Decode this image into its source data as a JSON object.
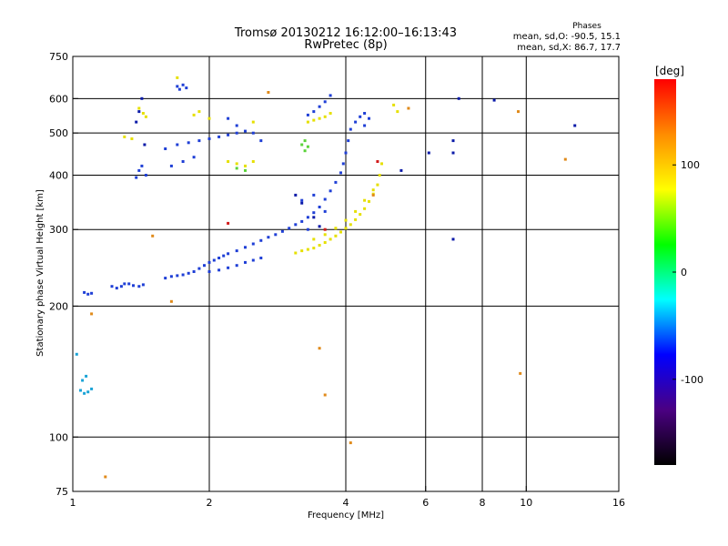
{
  "chart_data": {
    "type": "scatter",
    "title": "Tromsø 20130212 16:12:00–16:13:43",
    "subtitle": "RwPretec (8p)",
    "xlabel": "Frequency [MHz]",
    "ylabel": "Stationary phase Virtual Height [km]",
    "x_scale": "log",
    "y_scale": "log",
    "xlim": [
      1,
      16
    ],
    "ylim": [
      75,
      750
    ],
    "x_ticks": [
      1,
      2,
      4,
      6,
      8,
      10,
      16
    ],
    "y_ticks": [
      75,
      100,
      200,
      300,
      400,
      500,
      600,
      750
    ],
    "x_grid": [
      1,
      2,
      4,
      6,
      8,
      10,
      16
    ],
    "y_grid": [
      100,
      200,
      300,
      400,
      500,
      600
    ],
    "grid": true,
    "stats": {
      "title": "Phases",
      "line1": "mean, sd,O: -90.5, 15.1",
      "line2": "mean, sd,X: 86.7, 17.7"
    },
    "colorbar": {
      "unit": "[deg]",
      "min": -180,
      "max": 180,
      "ticks": [
        100,
        0,
        -100
      ],
      "tick_labels": [
        "100",
        "0",
        "-100"
      ],
      "colors": [
        "#000000",
        "#4b0082",
        "#0000ff",
        "#00ffff",
        "#00ff00",
        "#ffff00",
        "#ff8c00",
        "#ff0000"
      ]
    },
    "series": [
      {
        "color": "#1f3fd6",
        "points": [
          [
            1.06,
            215
          ],
          [
            1.08,
            213
          ],
          [
            1.1,
            214
          ],
          [
            1.22,
            222
          ],
          [
            1.25,
            220
          ],
          [
            1.28,
            222
          ],
          [
            1.3,
            225
          ],
          [
            1.33,
            225
          ],
          [
            1.36,
            223
          ],
          [
            1.4,
            222
          ],
          [
            1.43,
            224
          ],
          [
            1.6,
            232
          ],
          [
            1.65,
            234
          ],
          [
            1.7,
            235
          ],
          [
            1.75,
            236
          ],
          [
            1.8,
            238
          ],
          [
            1.85,
            240
          ],
          [
            1.9,
            244
          ],
          [
            1.95,
            248
          ],
          [
            2.0,
            252
          ],
          [
            2.05,
            255
          ],
          [
            2.1,
            258
          ],
          [
            2.15,
            261
          ],
          [
            2.2,
            264
          ],
          [
            2.3,
            268
          ],
          [
            2.4,
            273
          ],
          [
            2.5,
            278
          ],
          [
            2.6,
            283
          ],
          [
            2.7,
            288
          ],
          [
            2.8,
            292
          ],
          [
            2.9,
            297
          ],
          [
            3.0,
            302
          ],
          [
            3.1,
            308
          ],
          [
            3.2,
            313
          ],
          [
            3.3,
            320
          ],
          [
            3.4,
            328
          ],
          [
            3.5,
            338
          ],
          [
            2.0,
            240
          ],
          [
            2.1,
            242
          ],
          [
            2.2,
            245
          ],
          [
            2.3,
            248
          ],
          [
            2.4,
            252
          ],
          [
            2.5,
            255
          ],
          [
            2.6,
            258
          ],
          [
            3.6,
            352
          ],
          [
            3.7,
            368
          ],
          [
            3.8,
            385
          ],
          [
            3.9,
            405
          ],
          [
            3.95,
            425
          ],
          [
            4.0,
            450
          ],
          [
            4.05,
            480
          ],
          [
            4.1,
            510
          ],
          [
            4.2,
            530
          ],
          [
            4.3,
            545
          ],
          [
            4.4,
            555
          ],
          [
            1.4,
            410
          ],
          [
            1.42,
            420
          ],
          [
            1.45,
            400
          ],
          [
            1.38,
            395
          ],
          [
            1.6,
            460
          ],
          [
            1.7,
            470
          ],
          [
            1.8,
            475
          ],
          [
            1.9,
            480
          ],
          [
            2.0,
            485
          ],
          [
            2.1,
            490
          ],
          [
            2.2,
            495
          ],
          [
            2.3,
            500
          ],
          [
            2.4,
            505
          ],
          [
            1.7,
            640
          ],
          [
            1.72,
            630
          ],
          [
            1.75,
            645
          ],
          [
            1.78,
            635
          ],
          [
            3.3,
            550
          ],
          [
            3.4,
            560
          ],
          [
            3.5,
            575
          ],
          [
            3.6,
            590
          ],
          [
            3.7,
            610
          ],
          [
            1.65,
            420
          ],
          [
            1.75,
            430
          ],
          [
            1.85,
            440
          ],
          [
            2.2,
            540
          ],
          [
            2.3,
            520
          ],
          [
            2.5,
            500
          ],
          [
            2.6,
            480
          ],
          [
            3.2,
            350
          ],
          [
            3.4,
            360
          ],
          [
            3.6,
            330
          ],
          [
            3.3,
            300
          ],
          [
            4.4,
            520
          ],
          [
            4.5,
            540
          ]
        ]
      },
      {
        "color": "#0a1aa8",
        "points": [
          [
            1.42,
            600
          ],
          [
            1.4,
            560
          ],
          [
            1.38,
            530
          ],
          [
            1.44,
            470
          ],
          [
            3.1,
            360
          ],
          [
            3.2,
            345
          ],
          [
            3.4,
            320
          ],
          [
            3.5,
            305
          ],
          [
            6.9,
            480
          ],
          [
            6.9,
            450
          ],
          [
            12.8,
            520
          ],
          [
            6.1,
            450
          ],
          [
            5.3,
            410
          ],
          [
            6.9,
            285
          ],
          [
            7.1,
            600
          ],
          [
            8.5,
            595
          ]
        ]
      },
      {
        "color": "#e6e000",
        "points": [
          [
            3.1,
            265
          ],
          [
            3.2,
            268
          ],
          [
            3.3,
            270
          ],
          [
            3.4,
            272
          ],
          [
            3.5,
            276
          ],
          [
            3.6,
            280
          ],
          [
            3.7,
            285
          ],
          [
            3.8,
            290
          ],
          [
            3.9,
            296
          ],
          [
            4.0,
            302
          ],
          [
            4.1,
            308
          ],
          [
            4.2,
            316
          ],
          [
            4.3,
            325
          ],
          [
            4.4,
            335
          ],
          [
            4.5,
            348
          ],
          [
            4.6,
            362
          ],
          [
            4.7,
            380
          ],
          [
            4.75,
            400
          ],
          [
            4.8,
            425
          ],
          [
            3.4,
            285
          ],
          [
            3.6,
            292
          ],
          [
            3.8,
            302
          ],
          [
            4.0,
            315
          ],
          [
            4.2,
            330
          ],
          [
            4.4,
            350
          ],
          [
            4.6,
            370
          ],
          [
            1.4,
            570
          ],
          [
            1.43,
            555
          ],
          [
            1.45,
            545
          ],
          [
            1.85,
            550
          ],
          [
            1.9,
            560
          ],
          [
            2.0,
            540
          ],
          [
            3.3,
            530
          ],
          [
            3.4,
            535
          ],
          [
            3.5,
            540
          ],
          [
            3.6,
            545
          ],
          [
            3.7,
            555
          ],
          [
            2.2,
            430
          ],
          [
            2.3,
            425
          ],
          [
            2.4,
            420
          ],
          [
            2.5,
            430
          ],
          [
            1.7,
            670
          ],
          [
            2.5,
            530
          ],
          [
            1.3,
            490
          ],
          [
            1.35,
            485
          ],
          [
            5.1,
            580
          ],
          [
            5.2,
            560
          ]
        ]
      },
      {
        "color": "#5ad33a",
        "points": [
          [
            3.2,
            470
          ],
          [
            3.25,
            480
          ],
          [
            3.3,
            465
          ],
          [
            3.25,
            455
          ],
          [
            2.3,
            415
          ],
          [
            2.4,
            410
          ]
        ]
      },
      {
        "color": "#1aa3d6",
        "points": [
          [
            1.04,
            128
          ],
          [
            1.06,
            126
          ],
          [
            1.08,
            127
          ],
          [
            1.1,
            129
          ],
          [
            1.05,
            135
          ],
          [
            1.07,
            138
          ],
          [
            1.02,
            155
          ]
        ]
      },
      {
        "color": "#e08a1a",
        "points": [
          [
            1.18,
            81
          ],
          [
            1.1,
            192
          ],
          [
            1.5,
            290
          ],
          [
            3.6,
            125
          ],
          [
            3.5,
            160
          ],
          [
            4.1,
            97
          ],
          [
            9.7,
            140
          ],
          [
            12.2,
            435
          ],
          [
            9.6,
            560
          ],
          [
            5.5,
            570
          ],
          [
            2.7,
            620
          ],
          [
            1.65,
            205
          ],
          [
            4.6,
            360
          ]
        ]
      },
      {
        "color": "#d11a1a",
        "points": [
          [
            2.2,
            310
          ],
          [
            3.6,
            300
          ],
          [
            4.7,
            430
          ]
        ]
      }
    ]
  }
}
